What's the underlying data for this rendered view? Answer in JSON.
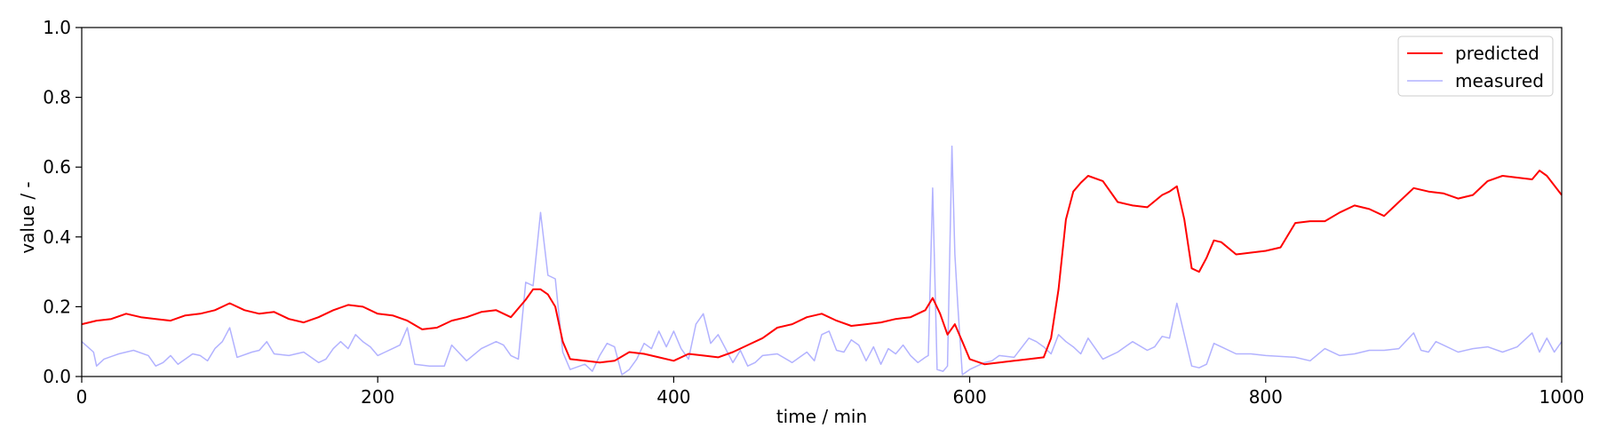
{
  "chart_data": {
    "type": "line",
    "title": "",
    "xlabel": "time / min",
    "ylabel": "value / -",
    "xlim": [
      0,
      1000
    ],
    "ylim": [
      0,
      1.0
    ],
    "xticks": [
      0,
      200,
      400,
      600,
      800,
      1000
    ],
    "xtick_labels": [
      "0",
      "200",
      "400",
      "600",
      "800",
      "1000"
    ],
    "yticks": [
      0,
      0.2,
      0.4,
      0.6,
      0.8,
      1.0
    ],
    "ytick_labels": [
      "0.0",
      "0.2",
      "0.4",
      "0.6",
      "0.8",
      "1.0"
    ],
    "grid": false,
    "legend_position": "top-right",
    "series": [
      {
        "name": "predicted",
        "color": "#ff0000",
        "x": [
          0,
          10,
          20,
          30,
          40,
          50,
          60,
          70,
          80,
          90,
          100,
          110,
          120,
          130,
          140,
          150,
          160,
          170,
          180,
          190,
          200,
          210,
          220,
          230,
          240,
          250,
          260,
          270,
          280,
          290,
          300,
          305,
          310,
          315,
          320,
          325,
          330,
          340,
          350,
          360,
          370,
          380,
          390,
          400,
          410,
          420,
          430,
          440,
          450,
          460,
          470,
          480,
          490,
          500,
          510,
          520,
          530,
          540,
          550,
          560,
          570,
          575,
          580,
          585,
          590,
          595,
          600,
          610,
          620,
          630,
          640,
          650,
          655,
          660,
          665,
          670,
          675,
          680,
          690,
          700,
          710,
          720,
          730,
          735,
          740,
          745,
          750,
          755,
          760,
          765,
          770,
          780,
          790,
          800,
          810,
          820,
          830,
          840,
          850,
          860,
          870,
          880,
          890,
          900,
          910,
          920,
          930,
          940,
          950,
          960,
          970,
          980,
          985,
          990,
          1000
        ],
        "y": [
          0.15,
          0.16,
          0.165,
          0.18,
          0.17,
          0.165,
          0.16,
          0.175,
          0.18,
          0.19,
          0.21,
          0.19,
          0.18,
          0.185,
          0.165,
          0.155,
          0.17,
          0.19,
          0.205,
          0.2,
          0.18,
          0.175,
          0.16,
          0.135,
          0.14,
          0.16,
          0.17,
          0.185,
          0.19,
          0.17,
          0.22,
          0.25,
          0.25,
          0.235,
          0.2,
          0.1,
          0.05,
          0.045,
          0.04,
          0.045,
          0.07,
          0.065,
          0.055,
          0.045,
          0.065,
          0.06,
          0.055,
          0.07,
          0.09,
          0.11,
          0.14,
          0.15,
          0.17,
          0.18,
          0.16,
          0.145,
          0.15,
          0.155,
          0.165,
          0.17,
          0.19,
          0.225,
          0.18,
          0.12,
          0.15,
          0.1,
          0.05,
          0.035,
          0.04,
          0.045,
          0.05,
          0.055,
          0.11,
          0.25,
          0.45,
          0.53,
          0.555,
          0.575,
          0.56,
          0.5,
          0.49,
          0.485,
          0.52,
          0.53,
          0.545,
          0.45,
          0.31,
          0.3,
          0.34,
          0.39,
          0.385,
          0.35,
          0.355,
          0.36,
          0.37,
          0.44,
          0.445,
          0.445,
          0.47,
          0.49,
          0.48,
          0.46,
          0.5,
          0.54,
          0.53,
          0.525,
          0.51,
          0.52,
          0.56,
          0.575,
          0.57,
          0.565,
          0.59,
          0.575,
          0.52
        ]
      },
      {
        "name": "measured",
        "color": "#b2b2ff",
        "x": [
          0,
          8,
          10,
          15,
          25,
          35,
          45,
          50,
          55,
          60,
          65,
          75,
          80,
          85,
          90,
          95,
          100,
          105,
          115,
          120,
          125,
          130,
          140,
          150,
          160,
          165,
          170,
          175,
          180,
          185,
          190,
          195,
          200,
          205,
          210,
          215,
          220,
          225,
          235,
          245,
          250,
          260,
          270,
          280,
          285,
          290,
          295,
          300,
          305,
          310,
          315,
          320,
          325,
          330,
          340,
          345,
          350,
          355,
          360,
          365,
          370,
          375,
          380,
          385,
          390,
          395,
          400,
          405,
          410,
          415,
          420,
          425,
          430,
          440,
          445,
          450,
          455,
          460,
          470,
          480,
          485,
          490,
          495,
          500,
          505,
          510,
          515,
          520,
          525,
          530,
          535,
          540,
          545,
          550,
          555,
          560,
          565,
          570,
          572,
          575,
          578,
          582,
          585,
          588,
          590,
          592,
          595,
          600,
          605,
          610,
          615,
          620,
          630,
          640,
          645,
          650,
          655,
          660,
          665,
          670,
          675,
          680,
          690,
          695,
          700,
          710,
          720,
          725,
          730,
          735,
          740,
          750,
          755,
          760,
          765,
          770,
          780,
          790,
          800,
          820,
          830,
          840,
          850,
          860,
          870,
          880,
          890,
          900,
          905,
          910,
          915,
          920,
          930,
          940,
          950,
          960,
          970,
          980,
          985,
          990,
          995,
          1000
        ],
        "y": [
          0.1,
          0.07,
          0.03,
          0.05,
          0.065,
          0.075,
          0.06,
          0.03,
          0.04,
          0.06,
          0.035,
          0.065,
          0.06,
          0.045,
          0.08,
          0.1,
          0.14,
          0.055,
          0.07,
          0.075,
          0.1,
          0.065,
          0.06,
          0.07,
          0.04,
          0.05,
          0.08,
          0.1,
          0.08,
          0.12,
          0.1,
          0.085,
          0.06,
          0.07,
          0.08,
          0.09,
          0.14,
          0.035,
          0.03,
          0.03,
          0.09,
          0.045,
          0.08,
          0.1,
          0.09,
          0.06,
          0.05,
          0.27,
          0.26,
          0.47,
          0.29,
          0.28,
          0.07,
          0.02,
          0.035,
          0.015,
          0.06,
          0.095,
          0.085,
          0.005,
          0.02,
          0.05,
          0.095,
          0.08,
          0.13,
          0.085,
          0.13,
          0.08,
          0.05,
          0.15,
          0.18,
          0.095,
          0.12,
          0.04,
          0.075,
          0.03,
          0.04,
          0.06,
          0.065,
          0.04,
          0.055,
          0.07,
          0.045,
          0.12,
          0.13,
          0.075,
          0.07,
          0.105,
          0.09,
          0.045,
          0.085,
          0.035,
          0.08,
          0.065,
          0.09,
          0.06,
          0.04,
          0.055,
          0.06,
          0.54,
          0.02,
          0.015,
          0.03,
          0.66,
          0.35,
          0.2,
          0.005,
          0.02,
          0.03,
          0.04,
          0.045,
          0.06,
          0.055,
          0.11,
          0.1,
          0.085,
          0.065,
          0.12,
          0.1,
          0.085,
          0.065,
          0.11,
          0.05,
          0.06,
          0.07,
          0.1,
          0.075,
          0.085,
          0.115,
          0.11,
          0.21,
          0.03,
          0.025,
          0.035,
          0.095,
          0.085,
          0.065,
          0.065,
          0.06,
          0.055,
          0.045,
          0.08,
          0.06,
          0.065,
          0.075,
          0.075,
          0.08,
          0.125,
          0.075,
          0.07,
          0.1,
          0.09,
          0.07,
          0.08,
          0.085,
          0.07,
          0.085,
          0.125,
          0.07,
          0.11,
          0.07,
          0.1
        ]
      }
    ]
  }
}
